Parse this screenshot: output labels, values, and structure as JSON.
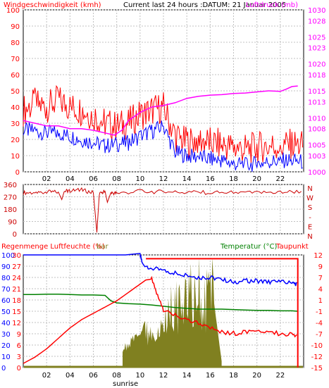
{
  "chart_data": [
    {
      "type": "line",
      "title": "Current last 24 hours :DATUM: 21 Januar 2005",
      "left_axis_label": "Windgeschwindigkeit (kmh)",
      "right_axis_label": "Luftdruck (mb)",
      "x_ticks": [
        "02",
        "04",
        "06",
        "08",
        "10",
        "12",
        "14",
        "16",
        "18",
        "20",
        "22"
      ],
      "x_tick_hours": [
        2,
        4,
        6,
        8,
        10,
        12,
        14,
        16,
        18,
        20,
        22
      ],
      "x_annotation": "sunrise",
      "x_annotation_hour": 8,
      "xlim": [
        0,
        24
      ],
      "ylim_left": [
        0,
        100
      ],
      "ylim_right": [
        1000,
        1030
      ],
      "left_ticks": [
        0,
        10,
        20,
        30,
        40,
        50,
        60,
        70,
        80,
        90,
        100
      ],
      "right_ticks": [
        1000,
        1003,
        1005,
        1008,
        1010,
        1013,
        1015,
        1018,
        1020,
        1023,
        1025,
        1028,
        1030
      ],
      "grid": true,
      "colors": {
        "gust": "#ff0000",
        "avg": "#0000ff",
        "pressure": "#ff00ff",
        "left_axis": "#ff0000",
        "right_axis": "#ff00ff"
      },
      "series": [
        {
          "values_x": [
            0,
            1,
            2,
            3,
            4,
            5,
            6,
            7,
            8,
            9,
            10,
            11,
            12,
            13,
            14,
            15,
            16,
            17,
            18,
            19,
            20,
            21,
            22,
            23,
            24
          ],
          "values_y": [
            38,
            42,
            40,
            44,
            40,
            38,
            35,
            30,
            28,
            30,
            35,
            38,
            40,
            22,
            18,
            20,
            18,
            17,
            15,
            14,
            15,
            16,
            16,
            17,
            16
          ]
        },
        {
          "values_x": [
            0,
            1,
            2,
            3,
            4,
            5,
            6,
            7,
            8,
            9,
            10,
            11,
            12,
            13,
            14,
            15,
            16,
            17,
            18,
            19,
            20,
            21,
            22,
            23,
            24
          ],
          "values_y": [
            26,
            25,
            24,
            24,
            22,
            20,
            18,
            16,
            17,
            18,
            22,
            25,
            28,
            12,
            10,
            9,
            8,
            7,
            5,
            4,
            5,
            6,
            7,
            7,
            6
          ]
        },
        {
          "values_x": [
            0,
            1,
            2,
            3,
            4,
            5,
            6,
            7,
            7.8,
            8.5,
            9,
            10,
            11,
            12,
            13,
            14,
            15,
            16,
            17,
            18,
            19,
            20,
            21,
            22,
            22.5,
            23,
            23.5
          ],
          "values_y": [
            1009.5,
            1009.0,
            1008.5,
            1008.5,
            1008.0,
            1008.0,
            1007.7,
            1007.2,
            1006.8,
            1007.8,
            1009.5,
            1011.0,
            1012.0,
            1012.3,
            1012.8,
            1013.6,
            1014.0,
            1014.2,
            1014.3,
            1014.5,
            1014.6,
            1014.8,
            1015.0,
            1014.9,
            1015.3,
            1015.8,
            1015.9
          ]
        }
      ]
    },
    {
      "type": "scatter",
      "right_labels": [
        "N",
        "W",
        "S",
        "-",
        "E",
        "N"
      ],
      "xlim": [
        0,
        24
      ],
      "ylim": [
        0,
        360
      ],
      "ticks": [
        0,
        90,
        180,
        270,
        360
      ],
      "tick_labels": [
        "0",
        "90",
        "180",
        "270",
        "360"
      ],
      "colors": {
        "line": "#cc0000",
        "axis": "#cc0000"
      },
      "series": [
        {
          "values_x": [
            0,
            1,
            2,
            3,
            3.3,
            3.5,
            4,
            5,
            6,
            6.3,
            6.5,
            7,
            7.2,
            7.5,
            8,
            10,
            12,
            14,
            16,
            18,
            20,
            22,
            24
          ],
          "values_y": [
            300,
            300,
            305,
            305,
            250,
            310,
            315,
            320,
            300,
            10,
            290,
            310,
            230,
            300,
            295,
            310,
            305,
            305,
            300,
            300,
            300,
            305,
            310
          ]
        }
      ]
    },
    {
      "type": "line",
      "labels": {
        "left": "Regenmenge Luftfeuchte (%)",
        "center": "bar",
        "right_green": "Temperatur (°C)",
        "right_red": "Taupunkt"
      },
      "x_ticks": [
        "02",
        "04",
        "06",
        "08",
        "10",
        "12",
        "14",
        "16",
        "18",
        "20",
        "22"
      ],
      "x_tick_hours": [
        2,
        4,
        6,
        8,
        10,
        12,
        14,
        16,
        18,
        20,
        22
      ],
      "x_annotation": "sunrise",
      "x_annotation_hour": 8,
      "xlim": [
        0,
        24
      ],
      "ylim_percent": [
        0,
        100
      ],
      "ylim_temp": [
        -15,
        12
      ],
      "col1_ticks": [
        0,
        10,
        20,
        30,
        40,
        50,
        60,
        70,
        80,
        90,
        100
      ],
      "col2_ticks": [
        0,
        3,
        6,
        9,
        12,
        15,
        18,
        21,
        24,
        27,
        30
      ],
      "right_ticks": [
        12,
        9,
        7,
        4,
        1,
        -1,
        -4,
        -7,
        -10,
        -12,
        -15
      ],
      "colors": {
        "humidity": "#0000ff",
        "temperature": "#008000",
        "dewpoint": "#ff0000",
        "rain_box": "#ff0000",
        "rain_fill": "#808020",
        "left_axis": "#ff0000",
        "right_axis": "#ff0000"
      },
      "series": [
        {
          "values_x": [
            0,
            10,
            10.2,
            11,
            12,
            13,
            14,
            15,
            16,
            17,
            18,
            19,
            20,
            21,
            22,
            23,
            23.5
          ],
          "values_y": [
            100,
            100,
            92,
            88,
            86,
            84,
            82,
            80,
            80,
            78,
            76,
            77,
            77,
            76,
            76,
            75,
            74
          ]
        },
        {
          "values_x": [
            0,
            1,
            2,
            3,
            4,
            5,
            6,
            7,
            7.5,
            8,
            9,
            10,
            11,
            12,
            13,
            14,
            15,
            16,
            17,
            18,
            19,
            20,
            21,
            22,
            23,
            23.5
          ],
          "values_y": [
            2.5,
            2.5,
            2.6,
            2.6,
            2.5,
            2.4,
            2.4,
            2.3,
            1.0,
            0.5,
            0.3,
            0.2,
            0.0,
            -0.3,
            -0.6,
            -0.8,
            -1.0,
            -1.0,
            -1.0,
            -1.1,
            -1.2,
            -1.3,
            -1.3,
            -1.4,
            -1.4,
            -1.5
          ]
        },
        {
          "values_x": [
            0,
            1,
            2,
            3,
            4,
            5,
            6,
            7,
            8,
            9,
            10,
            10.5,
            11,
            11.5,
            12,
            13,
            14,
            15,
            16,
            17,
            18,
            19,
            20,
            21,
            22,
            23,
            23.5
          ],
          "values_y": [
            -14,
            -12.5,
            -10.5,
            -8,
            -5.5,
            -3.5,
            -2,
            -0.5,
            1,
            3,
            5,
            6,
            6.2,
            2,
            -1,
            -2.5,
            -3.5,
            -4.5,
            -5.5,
            -6.5,
            -6.8,
            -6.4,
            -6.2,
            -6.6,
            -6.8,
            -7.2,
            -7.4
          ]
        },
        {
          "values_x": [
            0,
            10.5,
            23.5
          ],
          "values_y": [
            0,
            29,
            29
          ]
        }
      ]
    }
  ]
}
